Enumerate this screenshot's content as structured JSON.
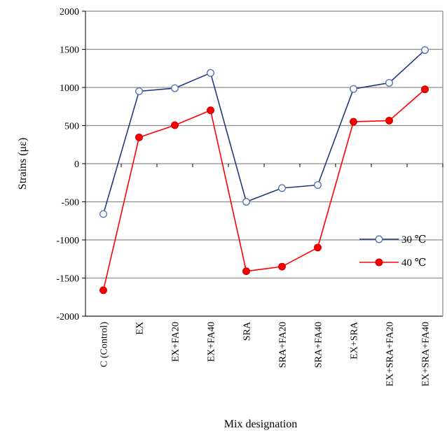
{
  "chart_data": {
    "type": "line",
    "xlabel": "Mix designation",
    "ylabel": "Strains (με)",
    "ylim": [
      -2000,
      2000
    ],
    "yticks": [
      -2000,
      -1500,
      -1000,
      -500,
      0,
      500,
      1000,
      1500,
      2000
    ],
    "grid": "horizontal",
    "legend_position": "right",
    "categories": [
      "C (Control)",
      "EX",
      "EX+FA20",
      "EX+FA40",
      "SRA",
      "SRA+FA20",
      "SRA+FA40",
      "EX+SRA",
      "EX+SRA+FA20",
      "EX+SRA+FA40"
    ],
    "series": [
      {
        "name": "30 ℃",
        "color": "#1f3a7a",
        "marker": "open-circle",
        "values": [
          -660,
          950,
          990,
          1190,
          -500,
          -320,
          -280,
          980,
          1060,
          1490
        ]
      },
      {
        "name": "40 ℃",
        "color": "#ff0000",
        "marker": "filled-circle",
        "values": [
          -1660,
          345,
          505,
          700,
          -1410,
          -1350,
          -1100,
          550,
          565,
          975
        ]
      }
    ]
  }
}
